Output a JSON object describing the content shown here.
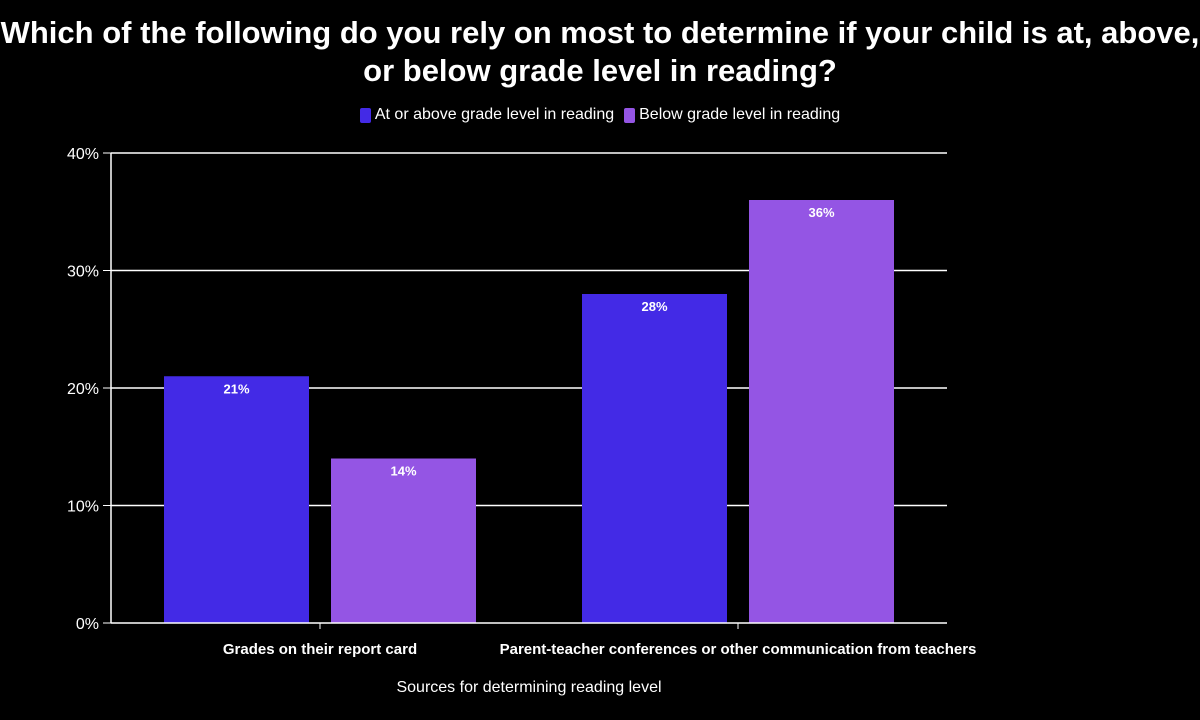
{
  "chart_data": {
    "type": "bar",
    "title": "Which of the following do you rely on most to determine if your child is at, above, or below grade level in reading?",
    "xlabel": "Sources for determining reading level",
    "ylabel": "",
    "categories": [
      "Grades on their report card",
      "Parent-teacher conferences or other communication from teachers"
    ],
    "series": [
      {
        "name": "At or above grade level in reading",
        "color": "#432ae6",
        "values": [
          21,
          28
        ],
        "labels": [
          "21%",
          "28%"
        ]
      },
      {
        "name": "Below grade level in reading",
        "color": "#9455e4",
        "values": [
          14,
          36
        ],
        "labels": [
          "14%",
          "36%"
        ]
      }
    ],
    "ylim": [
      0,
      40
    ],
    "yticks": [
      0,
      10,
      20,
      30,
      40
    ],
    "ytick_labels": [
      "0%",
      "10%",
      "20%",
      "30%",
      "40%"
    ],
    "grid": true,
    "legend_position": "top-center"
  }
}
